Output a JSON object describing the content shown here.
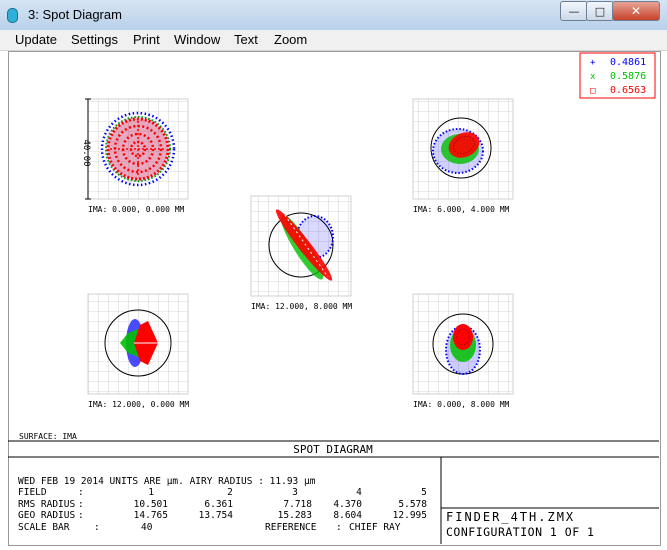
{
  "window": {
    "title": "3: Spot Diagram"
  },
  "menu": [
    "Update",
    "Settings",
    "Print",
    "Window",
    "Text",
    "Zoom"
  ],
  "legend": [
    {
      "wavelength": "0.4861",
      "color": "#0000ff",
      "marker": "+"
    },
    {
      "wavelength": "0.5876",
      "color": "#00c000",
      "marker": "x"
    },
    {
      "wavelength": "0.6563",
      "color": "#ff0000",
      "marker": "□"
    }
  ],
  "plots": [
    {
      "label": "IMA: 0.000, 0.000 MM",
      "scale_label": "40.00"
    },
    {
      "label": "IMA: 6.000, 4.000 MM"
    },
    {
      "label": "IMA: 12.000, 8.000 MM"
    },
    {
      "label": "IMA: 12.000, 0.000 MM"
    },
    {
      "label": "IMA: 0.000, 8.000 MM"
    }
  ],
  "surface_label": "SURFACE: IMA",
  "diagram_title": "SPOT DIAGRAM",
  "info": {
    "date_line": "WED FEB 19 2014  UNITS ARE µm.  AIRY RADIUS : 11.93 µm",
    "field": {
      "label": "FIELD",
      "values": [
        "1",
        "2",
        "3",
        "4",
        "5"
      ]
    },
    "rms_radius": {
      "label": "RMS RADIUS",
      "values": [
        "10.501",
        "6.361",
        "7.718",
        "4.370",
        "5.578"
      ]
    },
    "geo_radius": {
      "label": "GEO RADIUS",
      "values": [
        "14.765",
        "13.754",
        "15.283",
        "8.604",
        "12.995"
      ]
    },
    "scale_bar": {
      "label": "SCALE BAR",
      "value": "40",
      "reference_label": "REFERENCE",
      "reference_value": "CHIEF RAY"
    }
  },
  "file": {
    "name": "FINDER_4TH.ZMX",
    "configuration": "CONFIGURATION 1 OF 1"
  }
}
